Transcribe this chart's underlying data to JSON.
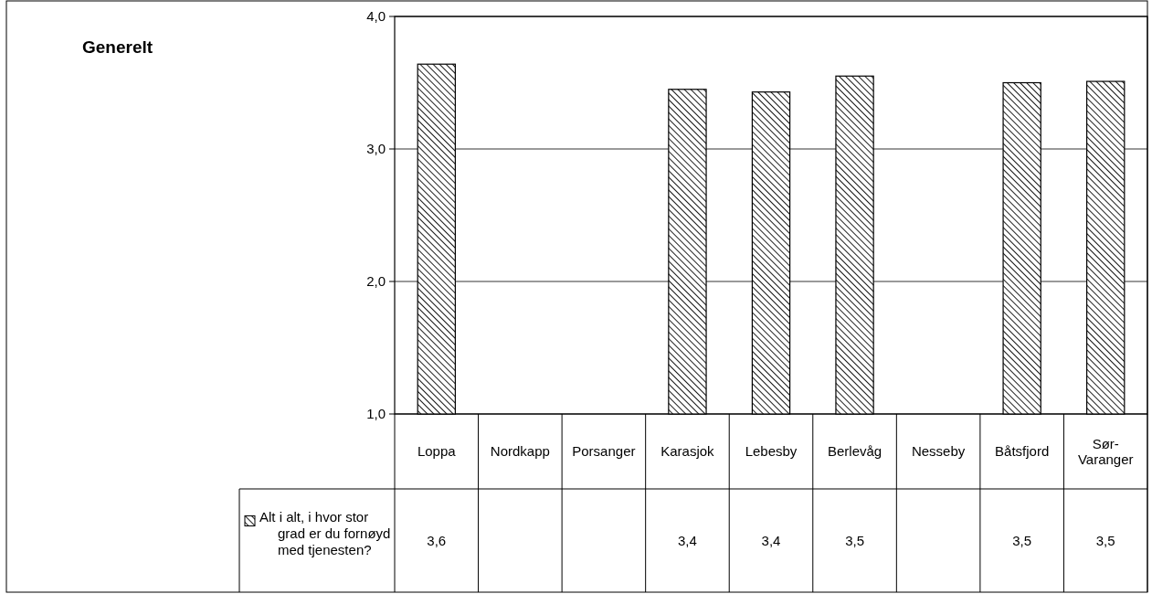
{
  "chart_data": {
    "type": "bar",
    "title": "Generelt",
    "categories": [
      "Loppa",
      "Nordkapp",
      "Porsanger",
      "Karasjok",
      "Lebesby",
      "Berlevåg",
      "Nesseby",
      "Båtsfjord",
      "Sør-Varanger"
    ],
    "series": [
      {
        "name": "Alt i alt, i hvor stor grad er du fornøyd med tjenesten?",
        "color": "#000000",
        "values": [
          3.64,
          null,
          null,
          3.45,
          3.43,
          3.55,
          null,
          3.5,
          3.51
        ],
        "value_labels": [
          "3,6",
          null,
          null,
          "3,4",
          "3,4",
          "3,5",
          null,
          "3,5",
          "3,5"
        ]
      }
    ],
    "ylim": [
      1,
      4
    ],
    "yticks": [
      {
        "value": 1,
        "label": "1,0"
      },
      {
        "value": 2,
        "label": "2,0"
      },
      {
        "value": 3,
        "label": "3,0"
      },
      {
        "value": 4,
        "label": "4,0"
      }
    ],
    "grid": "y",
    "legend": "bottom left"
  }
}
